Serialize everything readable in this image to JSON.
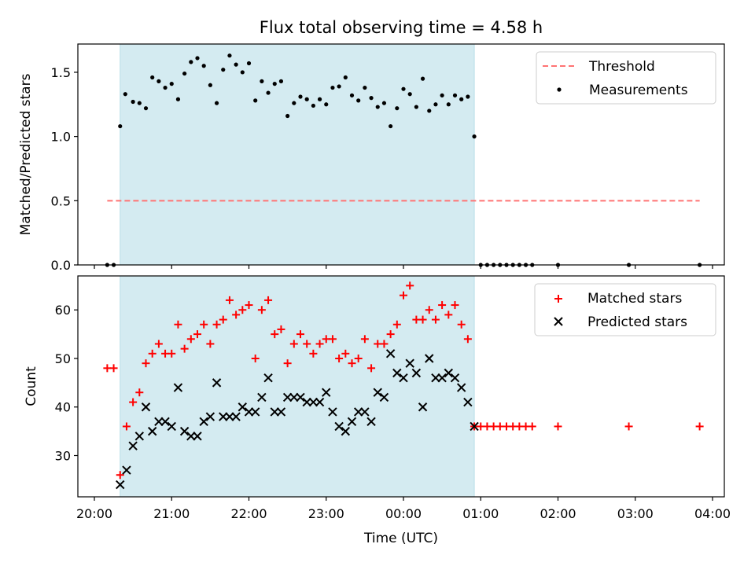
{
  "chart_data": [
    {
      "type": "scatter",
      "title": "Flux total observing time = 4.58 h",
      "ylabel": "Matched/Predicted stars",
      "xlabel": "",
      "xlim": [
        "20:00",
        "04:00"
      ],
      "ylim": [
        0,
        1.72
      ],
      "yticks": [
        "0.0",
        "0.5",
        "1.0",
        "1.5"
      ],
      "highlight_span": {
        "start": "20:20",
        "end": "00:55",
        "color": "#d4ebf1"
      },
      "threshold": {
        "name": "Threshold",
        "value": 0.5,
        "x_start": "20:10",
        "x_end": "03:50",
        "color": "#ff7373"
      },
      "legend": {
        "position": "top-right",
        "entries": [
          "Threshold",
          "Measurements"
        ]
      },
      "series": [
        {
          "name": "Measurements",
          "color": "#000000",
          "marker": "dot",
          "points": [
            [
              "20:10",
              0.0
            ],
            [
              "20:15",
              0.0
            ],
            [
              "20:20",
              1.08
            ],
            [
              "20:24",
              1.33
            ],
            [
              "20:30",
              1.27
            ],
            [
              "20:35",
              1.26
            ],
            [
              "20:40",
              1.22
            ],
            [
              "20:45",
              1.46
            ],
            [
              "20:50",
              1.43
            ],
            [
              "20:55",
              1.38
            ],
            [
              "21:00",
              1.41
            ],
            [
              "21:05",
              1.29
            ],
            [
              "21:10",
              1.49
            ],
            [
              "21:15",
              1.58
            ],
            [
              "21:20",
              1.61
            ],
            [
              "21:25",
              1.55
            ],
            [
              "21:30",
              1.4
            ],
            [
              "21:35",
              1.26
            ],
            [
              "21:40",
              1.52
            ],
            [
              "21:45",
              1.63
            ],
            [
              "21:50",
              1.56
            ],
            [
              "21:55",
              1.5
            ],
            [
              "22:00",
              1.57
            ],
            [
              "22:05",
              1.28
            ],
            [
              "22:10",
              1.43
            ],
            [
              "22:15",
              1.34
            ],
            [
              "22:20",
              1.41
            ],
            [
              "22:25",
              1.43
            ],
            [
              "22:30",
              1.16
            ],
            [
              "22:35",
              1.26
            ],
            [
              "22:40",
              1.31
            ],
            [
              "22:45",
              1.29
            ],
            [
              "22:50",
              1.24
            ],
            [
              "22:55",
              1.29
            ],
            [
              "23:00",
              1.25
            ],
            [
              "23:05",
              1.38
            ],
            [
              "23:10",
              1.39
            ],
            [
              "23:15",
              1.46
            ],
            [
              "23:20",
              1.32
            ],
            [
              "23:25",
              1.28
            ],
            [
              "23:30",
              1.38
            ],
            [
              "23:35",
              1.3
            ],
            [
              "23:40",
              1.23
            ],
            [
              "23:45",
              1.26
            ],
            [
              "23:50",
              1.08
            ],
            [
              "23:55",
              1.22
            ],
            [
              "00:00",
              1.37
            ],
            [
              "00:05",
              1.33
            ],
            [
              "00:10",
              1.23
            ],
            [
              "00:15",
              1.45
            ],
            [
              "00:20",
              1.2
            ],
            [
              "00:25",
              1.25
            ],
            [
              "00:30",
              1.32
            ],
            [
              "00:35",
              1.25
            ],
            [
              "00:40",
              1.32
            ],
            [
              "00:45",
              1.29
            ],
            [
              "00:50",
              1.31
            ],
            [
              "00:55",
              1.0
            ],
            [
              "01:00",
              0.0
            ],
            [
              "01:05",
              0.0
            ],
            [
              "01:10",
              0.0
            ],
            [
              "01:15",
              0.0
            ],
            [
              "01:20",
              0.0
            ],
            [
              "01:25",
              0.0
            ],
            [
              "01:30",
              0.0
            ],
            [
              "01:35",
              0.0
            ],
            [
              "01:40",
              0.0
            ],
            [
              "02:00",
              0.0
            ],
            [
              "02:55",
              0.0
            ],
            [
              "03:50",
              0.0
            ]
          ]
        }
      ]
    },
    {
      "type": "scatter",
      "title": "",
      "xlabel": "Time (UTC)",
      "ylabel": "Count",
      "xlim": [
        "20:00",
        "04:00"
      ],
      "ylim": [
        21.5,
        67
      ],
      "yticks": [
        "30",
        "40",
        "50",
        "60"
      ],
      "xticks": [
        "20:00",
        "21:00",
        "22:00",
        "23:00",
        "00:00",
        "01:00",
        "02:00",
        "03:00",
        "04:00"
      ],
      "highlight_span": {
        "start": "20:20",
        "end": "00:55",
        "color": "#d4ebf1"
      },
      "legend": {
        "position": "top-right",
        "entries": [
          "Matched stars",
          "Predicted stars"
        ]
      },
      "series": [
        {
          "name": "Matched stars",
          "color": "#ff0000",
          "marker": "plus",
          "points": [
            [
              "20:10",
              48
            ],
            [
              "20:15",
              48
            ],
            [
              "20:20",
              26
            ],
            [
              "20:25",
              36
            ],
            [
              "20:30",
              41
            ],
            [
              "20:35",
              43
            ],
            [
              "20:40",
              49
            ],
            [
              "20:45",
              51
            ],
            [
              "20:50",
              53
            ],
            [
              "20:55",
              51
            ],
            [
              "21:00",
              51
            ],
            [
              "21:05",
              57
            ],
            [
              "21:10",
              52
            ],
            [
              "21:15",
              54
            ],
            [
              "21:20",
              55
            ],
            [
              "21:25",
              57
            ],
            [
              "21:30",
              53
            ],
            [
              "21:35",
              57
            ],
            [
              "21:40",
              58
            ],
            [
              "21:45",
              62
            ],
            [
              "21:50",
              59
            ],
            [
              "21:55",
              60
            ],
            [
              "22:00",
              61
            ],
            [
              "22:05",
              50
            ],
            [
              "22:10",
              60
            ],
            [
              "22:15",
              62
            ],
            [
              "22:20",
              55
            ],
            [
              "22:25",
              56
            ],
            [
              "22:30",
              49
            ],
            [
              "22:35",
              53
            ],
            [
              "22:40",
              55
            ],
            [
              "22:45",
              53
            ],
            [
              "22:50",
              51
            ],
            [
              "22:55",
              53
            ],
            [
              "23:00",
              54
            ],
            [
              "23:05",
              54
            ],
            [
              "23:10",
              50
            ],
            [
              "23:15",
              51
            ],
            [
              "23:20",
              49
            ],
            [
              "23:25",
              50
            ],
            [
              "23:30",
              54
            ],
            [
              "23:35",
              48
            ],
            [
              "23:40",
              53
            ],
            [
              "23:45",
              53
            ],
            [
              "23:50",
              55
            ],
            [
              "23:55",
              57
            ],
            [
              "00:00",
              63
            ],
            [
              "00:05",
              65
            ],
            [
              "00:10",
              58
            ],
            [
              "00:15",
              58
            ],
            [
              "00:20",
              60
            ],
            [
              "00:25",
              58
            ],
            [
              "00:30",
              61
            ],
            [
              "00:35",
              59
            ],
            [
              "00:40",
              61
            ],
            [
              "00:45",
              57
            ],
            [
              "00:50",
              54
            ],
            [
              "00:55",
              36
            ],
            [
              "01:00",
              36
            ],
            [
              "01:05",
              36
            ],
            [
              "01:10",
              36
            ],
            [
              "01:15",
              36
            ],
            [
              "01:20",
              36
            ],
            [
              "01:25",
              36
            ],
            [
              "01:30",
              36
            ],
            [
              "01:35",
              36
            ],
            [
              "01:40",
              36
            ],
            [
              "02:00",
              36
            ],
            [
              "02:55",
              36
            ],
            [
              "03:50",
              36
            ]
          ]
        },
        {
          "name": "Predicted stars",
          "color": "#000000",
          "marker": "x",
          "points": [
            [
              "20:20",
              24
            ],
            [
              "20:25",
              27
            ],
            [
              "20:30",
              32
            ],
            [
              "20:35",
              34
            ],
            [
              "20:40",
              40
            ],
            [
              "20:45",
              35
            ],
            [
              "20:50",
              37
            ],
            [
              "20:55",
              37
            ],
            [
              "21:00",
              36
            ],
            [
              "21:05",
              44
            ],
            [
              "21:10",
              35
            ],
            [
              "21:15",
              34
            ],
            [
              "21:20",
              34
            ],
            [
              "21:25",
              37
            ],
            [
              "21:30",
              38
            ],
            [
              "21:35",
              45
            ],
            [
              "21:40",
              38
            ],
            [
              "21:45",
              38
            ],
            [
              "21:50",
              38
            ],
            [
              "21:55",
              40
            ],
            [
              "22:00",
              39
            ],
            [
              "22:05",
              39
            ],
            [
              "22:10",
              42
            ],
            [
              "22:15",
              46
            ],
            [
              "22:20",
              39
            ],
            [
              "22:25",
              39
            ],
            [
              "22:30",
              42
            ],
            [
              "22:35",
              42
            ],
            [
              "22:40",
              42
            ],
            [
              "22:45",
              41
            ],
            [
              "22:50",
              41
            ],
            [
              "22:55",
              41
            ],
            [
              "23:00",
              43
            ],
            [
              "23:05",
              39
            ],
            [
              "23:10",
              36
            ],
            [
              "23:15",
              35
            ],
            [
              "23:20",
              37
            ],
            [
              "23:25",
              39
            ],
            [
              "23:30",
              39
            ],
            [
              "23:35",
              37
            ],
            [
              "23:40",
              43
            ],
            [
              "23:45",
              42
            ],
            [
              "23:50",
              51
            ],
            [
              "23:55",
              47
            ],
            [
              "00:00",
              46
            ],
            [
              "00:05",
              49
            ],
            [
              "00:10",
              47
            ],
            [
              "00:15",
              40
            ],
            [
              "00:20",
              50
            ],
            [
              "00:25",
              46
            ],
            [
              "00:30",
              46
            ],
            [
              "00:35",
              47
            ],
            [
              "00:40",
              46
            ],
            [
              "00:45",
              44
            ],
            [
              "00:50",
              41
            ],
            [
              "00:55",
              36
            ]
          ]
        }
      ]
    }
  ]
}
